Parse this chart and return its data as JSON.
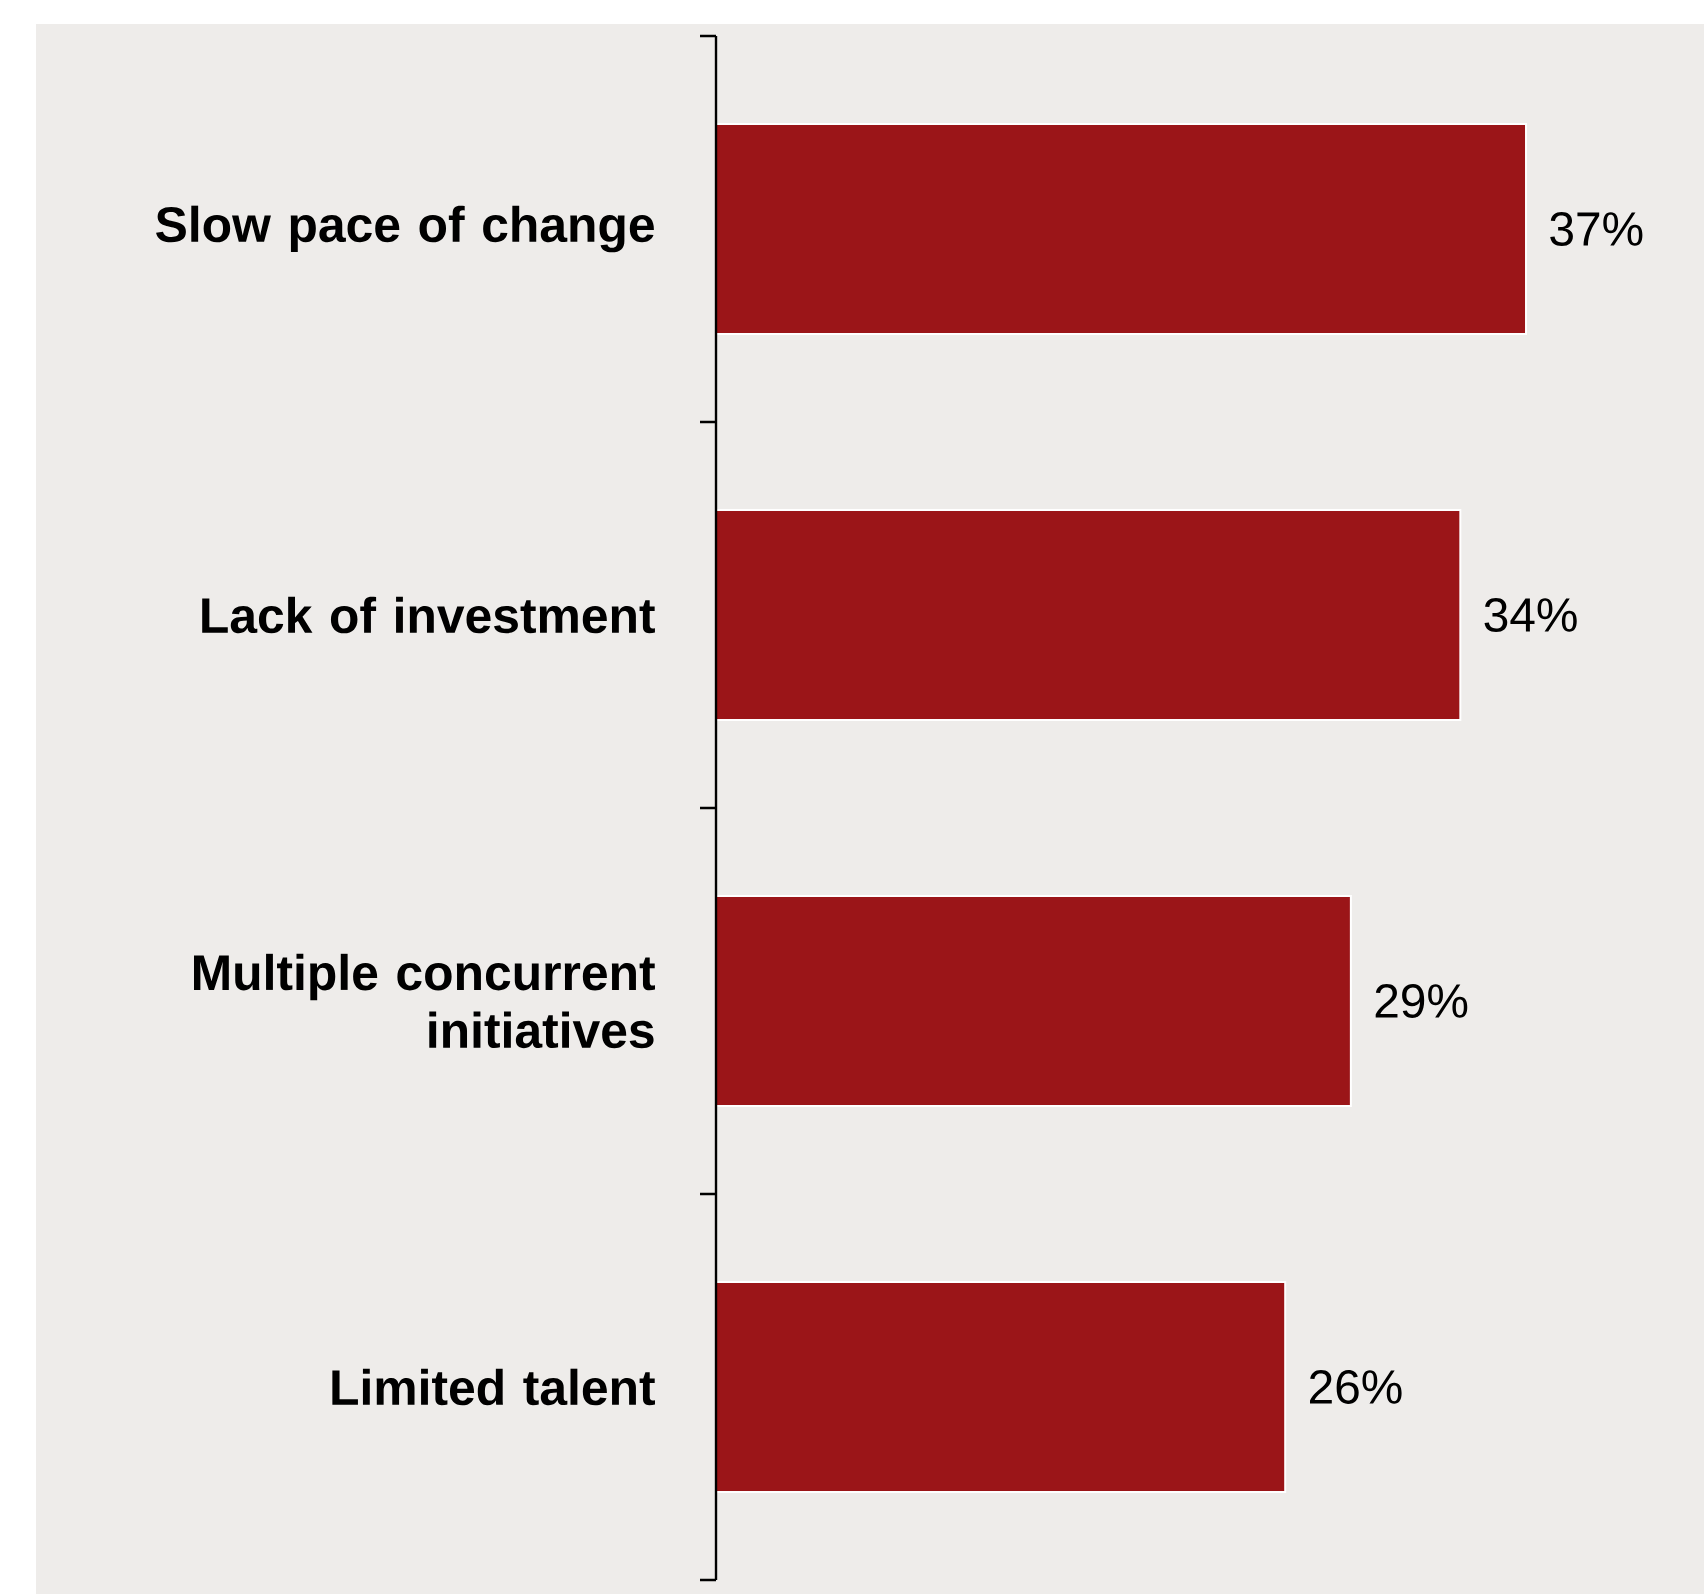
{
  "chart_data": {
    "type": "bar",
    "orientation": "horizontal",
    "categories": [
      "Slow pace of change",
      "Lack of investment",
      "Multiple concurrent initiatives",
      "Limited talent"
    ],
    "values": [
      37,
      34,
      29,
      26
    ],
    "value_labels": [
      "37%",
      "34%",
      "29%",
      "26%"
    ],
    "color": "#9b1518"
  }
}
